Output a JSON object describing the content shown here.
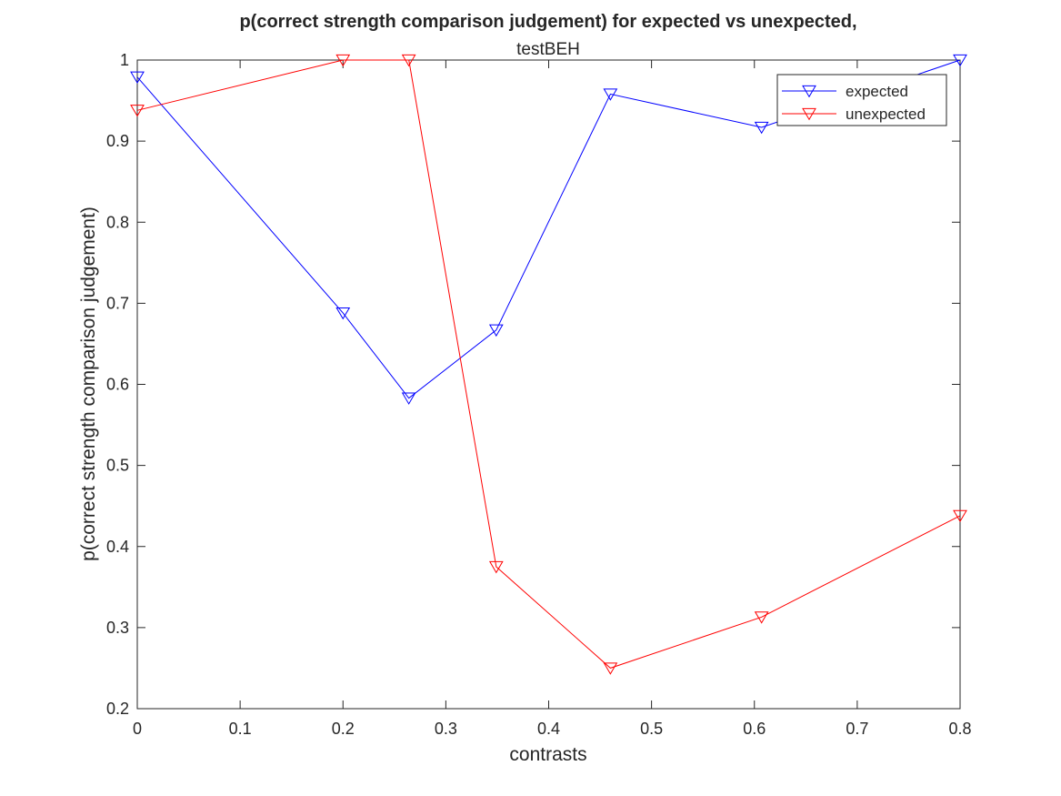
{
  "chart_data": {
    "type": "line",
    "title": "p(correct strength comparison judgement) for expected vs unexpected,",
    "subtitle": "testBEH",
    "xlabel": "contrasts",
    "ylabel": "p(correct strength comparison judgement)",
    "xlim": [
      0,
      0.8
    ],
    "ylim": [
      0.2,
      1
    ],
    "xticks": [
      0,
      0.1,
      0.2,
      0.3,
      0.4,
      0.5,
      0.6,
      0.7,
      0.8
    ],
    "yticks": [
      0.2,
      0.3,
      0.4,
      0.5,
      0.6,
      0.7,
      0.8,
      0.9,
      1
    ],
    "xtick_labels": [
      "0",
      "0.1",
      "0.2",
      "0.3",
      "0.4",
      "0.5",
      "0.6",
      "0.7",
      "0.8"
    ],
    "ytick_labels": [
      "0.2",
      "0.3",
      "0.4",
      "0.5",
      "0.6",
      "0.7",
      "0.8",
      "0.9",
      "1"
    ],
    "x": [
      0,
      0.2,
      0.264,
      0.349,
      0.46,
      0.607,
      0.8
    ],
    "series": [
      {
        "name": "expected",
        "color": "#0000ff",
        "marker": "triangle-down",
        "values": [
          0.979,
          0.688,
          0.583,
          0.667,
          0.958,
          0.917,
          1.0
        ]
      },
      {
        "name": "unexpected",
        "color": "#ff0000",
        "marker": "triangle-down",
        "values": [
          0.938,
          1.0,
          1.0,
          0.375,
          0.25,
          0.313,
          0.438
        ]
      }
    ],
    "grid": false,
    "box": true,
    "legend_position": "top-right"
  }
}
